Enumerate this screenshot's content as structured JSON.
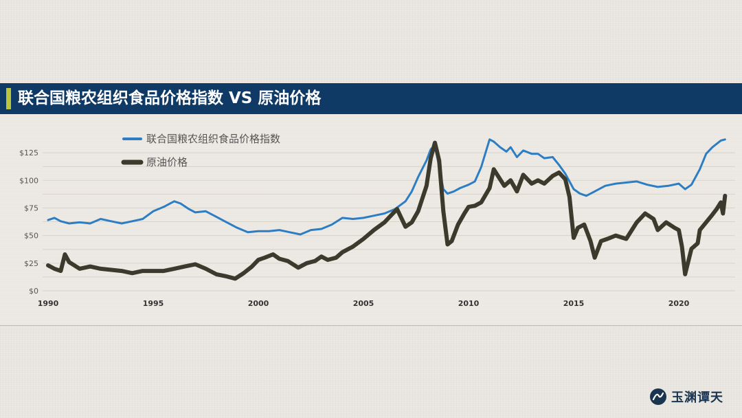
{
  "title": "联合国粮农组织食品价格指数 VS 原油价格",
  "watermark": {
    "text": "玉渊谭天",
    "icon": "brand-logo"
  },
  "colors": {
    "title_bar": "#0f3a66",
    "title_accent": "#b9c63d",
    "food_index": "#2d7dc4",
    "crude_oil": "#3b3a2c"
  },
  "chart_data": {
    "type": "line",
    "title": "",
    "xlabel": "",
    "ylabel": "",
    "xlim": [
      1990,
      2022.3
    ],
    "ylim": [
      0,
      140
    ],
    "grid": true,
    "legend_position": "top-left",
    "x_ticks": [
      1990,
      1995,
      2000,
      2005,
      2010,
      2015,
      2020
    ],
    "x_tick_labels": [
      "1990",
      "1995",
      "2000",
      "2005",
      "2010",
      "2015",
      "2020"
    ],
    "y_ticks": [
      0,
      25,
      50,
      75,
      100,
      125
    ],
    "y_tick_labels": [
      "$0",
      "$25",
      "$50",
      "$75",
      "$100",
      "$125"
    ],
    "series": [
      {
        "name": "联合国粮农组织食品价格指数",
        "color": "#2d7dc4",
        "x": [
          1990,
          1990.3,
          1990.6,
          1991,
          1991.5,
          1992,
          1992.5,
          1993,
          1993.5,
          1994,
          1994.5,
          1995,
          1995.5,
          1996,
          1996.3,
          1996.7,
          1997,
          1997.5,
          1998,
          1998.5,
          1999,
          1999.5,
          2000,
          2000.5,
          2001,
          2001.5,
          2002,
          2002.5,
          2003,
          2003.5,
          2004,
          2004.5,
          2005,
          2005.5,
          2006,
          2006.5,
          2007,
          2007.3,
          2007.6,
          2008,
          2008.2,
          2008.4,
          2008.6,
          2008.8,
          2009,
          2009.3,
          2009.6,
          2010,
          2010.3,
          2010.6,
          2011,
          2011.2,
          2011.5,
          2011.8,
          2012,
          2012.3,
          2012.6,
          2013,
          2013.3,
          2013.6,
          2014,
          2014.3,
          2014.6,
          2015,
          2015.3,
          2015.6,
          2016,
          2016.5,
          2017,
          2017.5,
          2018,
          2018.5,
          2019,
          2019.5,
          2020,
          2020.3,
          2020.6,
          2021,
          2021.3,
          2021.6,
          2022,
          2022.2
        ],
        "values": [
          64,
          66,
          63,
          61,
          62,
          61,
          65,
          63,
          61,
          63,
          65,
          72,
          76,
          81,
          79,
          74,
          71,
          72,
          67,
          62,
          57,
          53,
          54,
          54,
          55,
          53,
          51,
          55,
          56,
          60,
          66,
          65,
          66,
          68,
          70,
          74,
          81,
          90,
          103,
          118,
          128,
          132,
          112,
          92,
          88,
          90,
          93,
          96,
          99,
          112,
          137,
          135,
          130,
          126,
          130,
          121,
          127,
          124,
          124,
          120,
          121,
          114,
          106,
          92,
          88,
          86,
          90,
          95,
          97,
          98,
          99,
          96,
          94,
          95,
          97,
          92,
          96,
          110,
          124,
          130,
          136,
          137
        ]
      },
      {
        "name": "原油价格",
        "color": "#3b3a2c",
        "x": [
          1990,
          1990.3,
          1990.6,
          1990.8,
          1991,
          1991.5,
          1992,
          1992.5,
          1993,
          1993.5,
          1994,
          1994.5,
          1995,
          1995.5,
          1996,
          1996.5,
          1997,
          1997.5,
          1998,
          1998.5,
          1998.9,
          1999.3,
          1999.7,
          2000,
          2000.3,
          2000.7,
          2001,
          2001.4,
          2001.9,
          2002.3,
          2002.7,
          2003,
          2003.3,
          2003.7,
          2004,
          2004.5,
          2005,
          2005.5,
          2006,
          2006.3,
          2006.6,
          2007,
          2007.3,
          2007.6,
          2008,
          2008.2,
          2008.4,
          2008.6,
          2008.8,
          2009,
          2009.2,
          2009.5,
          2009.8,
          2010,
          2010.3,
          2010.6,
          2011,
          2011.2,
          2011.4,
          2011.7,
          2012,
          2012.3,
          2012.6,
          2013,
          2013.3,
          2013.6,
          2014,
          2014.3,
          2014.6,
          2014.8,
          2015,
          2015.2,
          2015.5,
          2015.8,
          2016,
          2016.3,
          2016.6,
          2017,
          2017.5,
          2018,
          2018.4,
          2018.8,
          2019,
          2019.4,
          2019.8,
          2020,
          2020.15,
          2020.3,
          2020.6,
          2020.9,
          2021,
          2021.3,
          2021.6,
          2021.8,
          2022,
          2022.1,
          2022.2
        ],
        "values": [
          23,
          20,
          18,
          33,
          26,
          20,
          22,
          20,
          19,
          18,
          16,
          18,
          18,
          18,
          20,
          22,
          24,
          20,
          15,
          13,
          11,
          16,
          22,
          28,
          30,
          33,
          29,
          27,
          21,
          25,
          27,
          31,
          28,
          30,
          35,
          40,
          47,
          55,
          62,
          68,
          74,
          58,
          62,
          72,
          95,
          120,
          134,
          118,
          72,
          42,
          45,
          60,
          70,
          76,
          77,
          80,
          93,
          110,
          104,
          95,
          100,
          90,
          105,
          97,
          100,
          97,
          104,
          107,
          101,
          85,
          48,
          57,
          60,
          45,
          30,
          45,
          47,
          50,
          47,
          62,
          70,
          65,
          55,
          62,
          57,
          55,
          40,
          15,
          38,
          43,
          55,
          62,
          69,
          74,
          80,
          70,
          86
        ]
      }
    ]
  }
}
